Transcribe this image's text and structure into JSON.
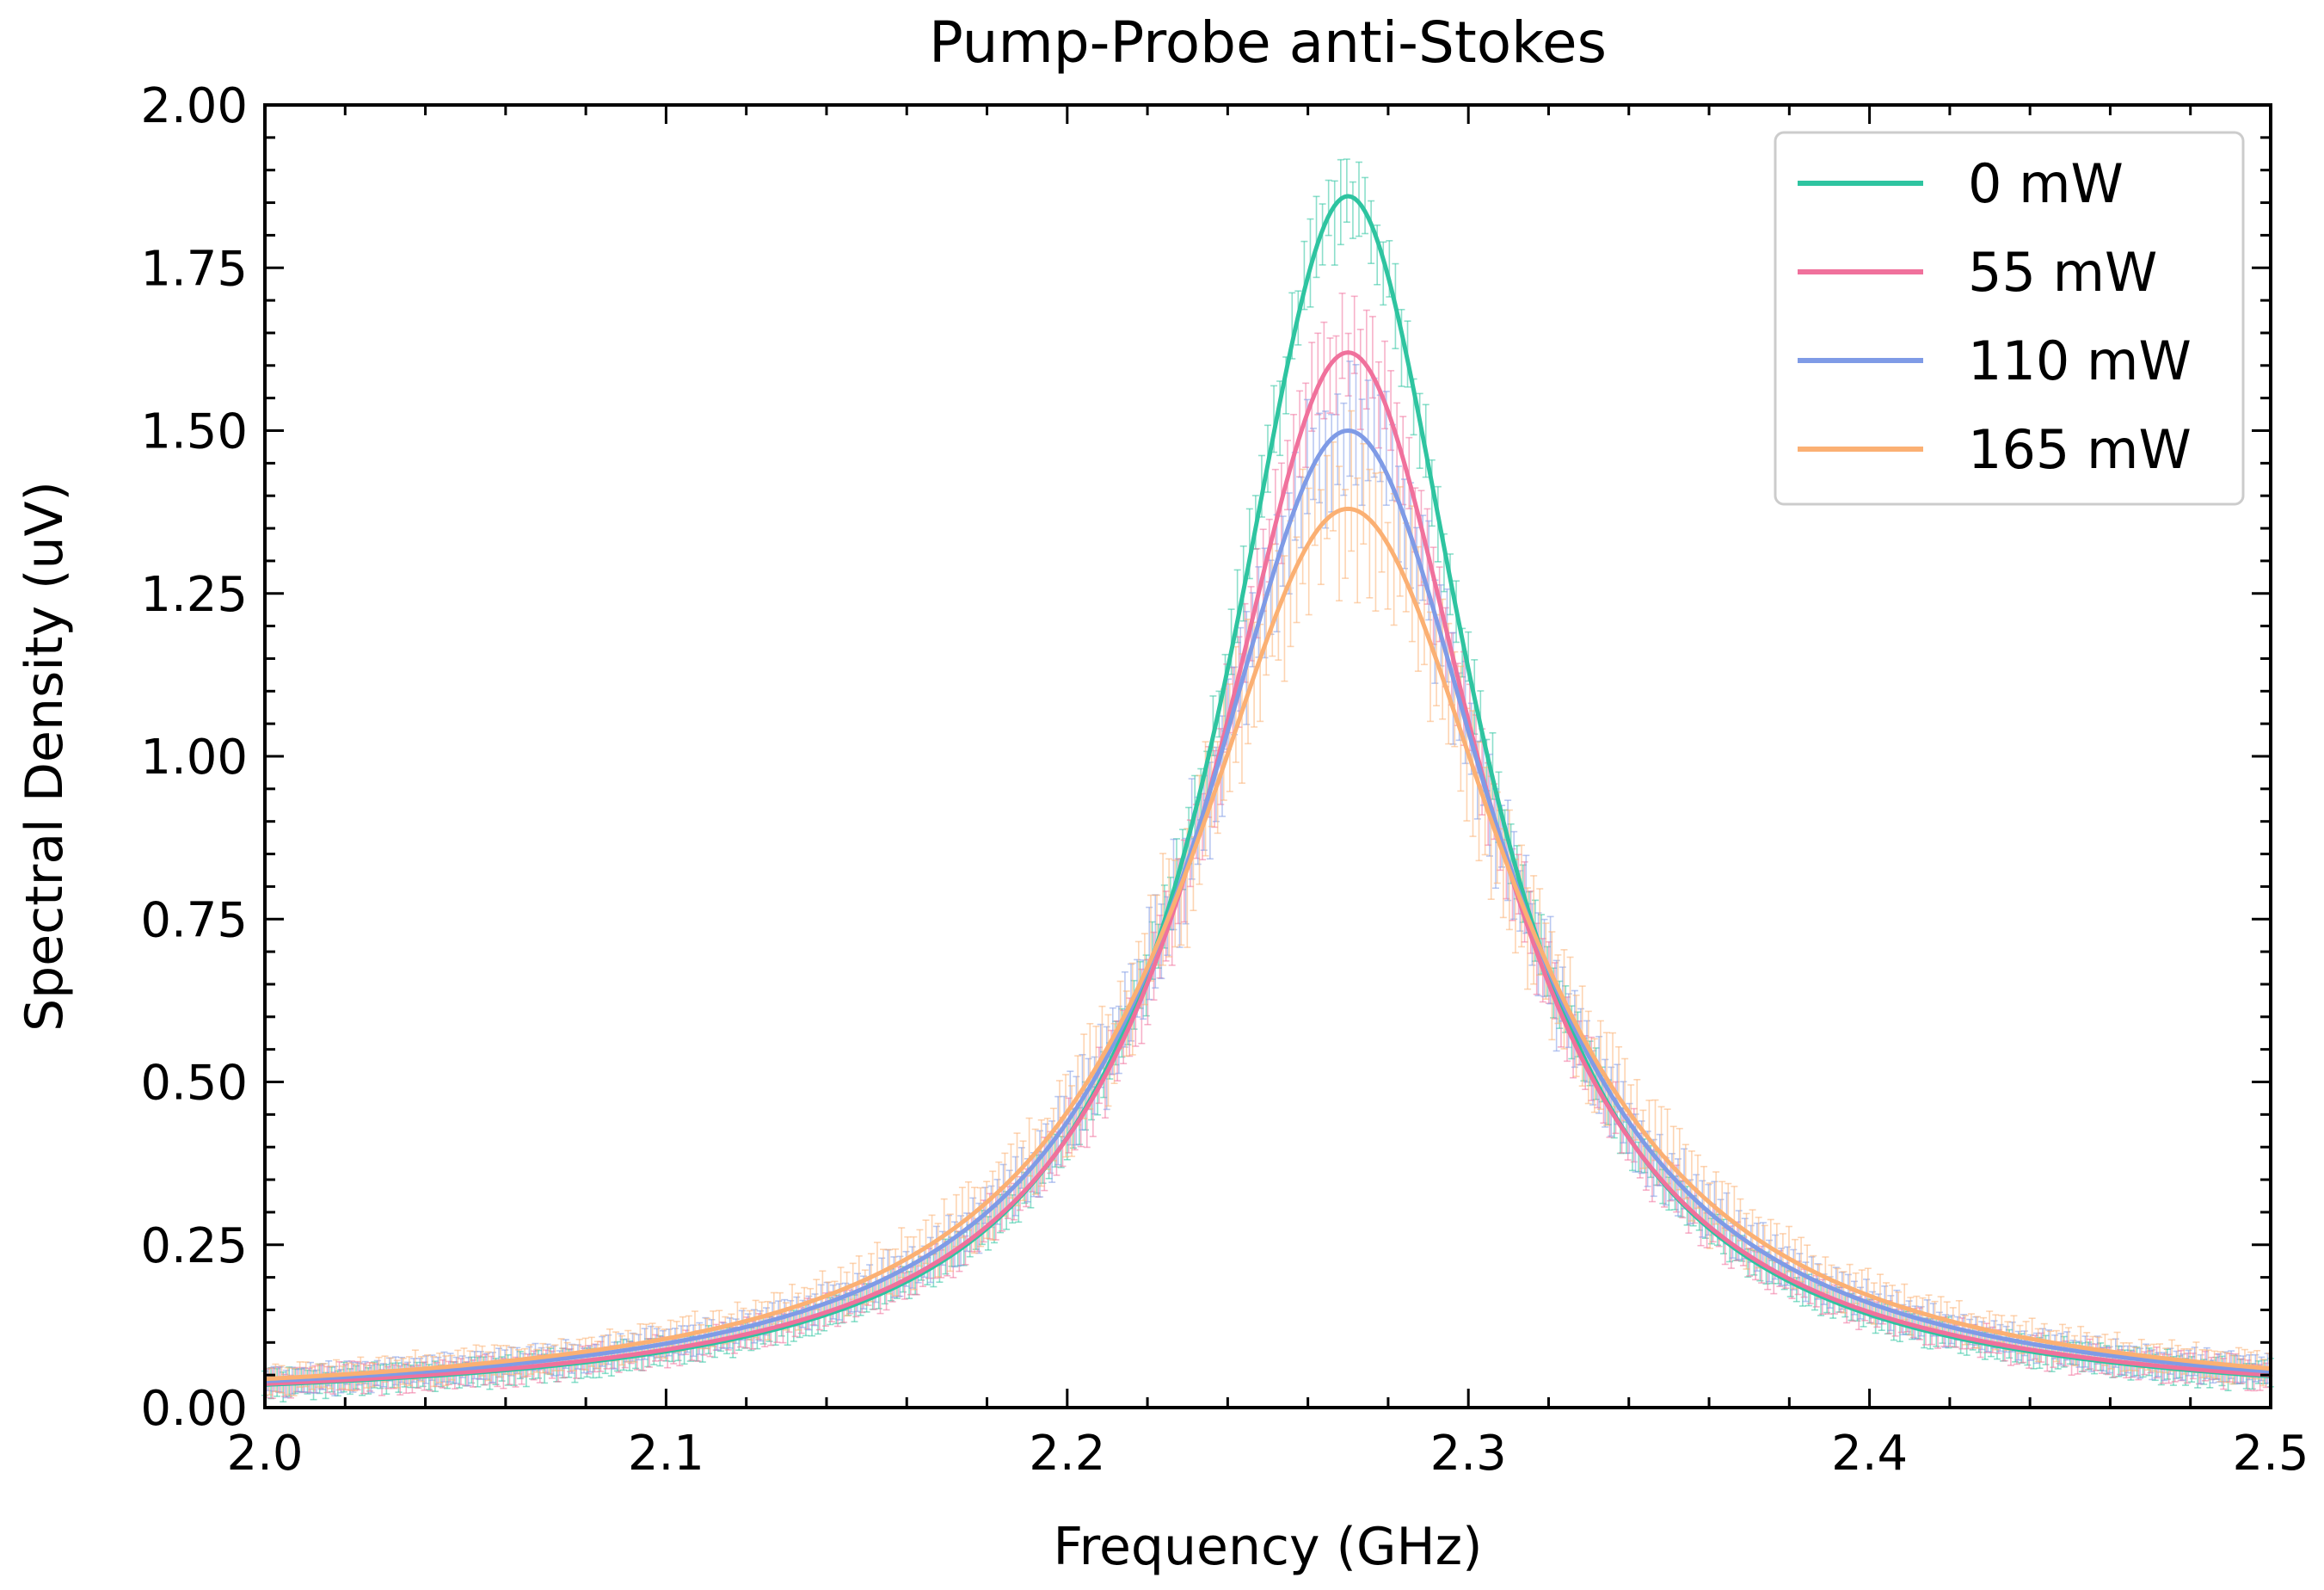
{
  "chart_data": {
    "type": "line",
    "title": "Pump-Probe anti-Stokes",
    "xlabel": "Frequency (GHz)",
    "ylabel": "Spectral Density (uV)",
    "xlim": [
      2.0,
      2.5
    ],
    "ylim": [
      0.0,
      2.0
    ],
    "x_ticks": [
      "2.0",
      "2.1",
      "2.2",
      "2.3",
      "2.4",
      "2.5"
    ],
    "y_ticks": [
      "0.00",
      "0.25",
      "0.50",
      "0.75",
      "1.00",
      "1.25",
      "1.50",
      "1.75",
      "2.00"
    ],
    "grid": false,
    "legend_position": "top-right",
    "error_bars": true,
    "lineshape": "lorentzian",
    "series": [
      {
        "name": "0 mW",
        "color": "#2ec4a0",
        "center": 2.27,
        "peak": 1.86,
        "fwhm": 0.075,
        "values_at": {
          "x": [
            2.0,
            2.1,
            2.2,
            2.27,
            2.35,
            2.4,
            2.5
          ],
          "y": [
            0.065,
            0.15,
            0.61,
            1.86,
            0.39,
            0.23,
            0.1
          ]
        }
      },
      {
        "name": "55 mW",
        "color": "#f0719c",
        "center": 2.27,
        "peak": 1.62,
        "fwhm": 0.082,
        "values_at": {
          "x": [
            2.0,
            2.1,
            2.2,
            2.27,
            2.35,
            2.4,
            2.5
          ],
          "y": [
            0.066,
            0.15,
            0.59,
            1.62,
            0.39,
            0.23,
            0.1
          ]
        }
      },
      {
        "name": "110 mW",
        "color": "#7f9be6",
        "center": 2.27,
        "peak": 1.5,
        "fwhm": 0.09,
        "values_at": {
          "x": [
            2.0,
            2.1,
            2.2,
            2.27,
            2.35,
            2.4,
            2.5
          ],
          "y": [
            0.067,
            0.155,
            0.59,
            1.5,
            0.4,
            0.23,
            0.1
          ]
        }
      },
      {
        "name": "165 mW",
        "color": "#fbb073",
        "center": 2.27,
        "peak": 1.38,
        "fwhm": 0.098,
        "values_at": {
          "x": [
            2.0,
            2.1,
            2.2,
            2.27,
            2.35,
            2.4,
            2.5
          ],
          "y": [
            0.068,
            0.16,
            0.6,
            1.38,
            0.4,
            0.24,
            0.1
          ]
        }
      }
    ]
  }
}
